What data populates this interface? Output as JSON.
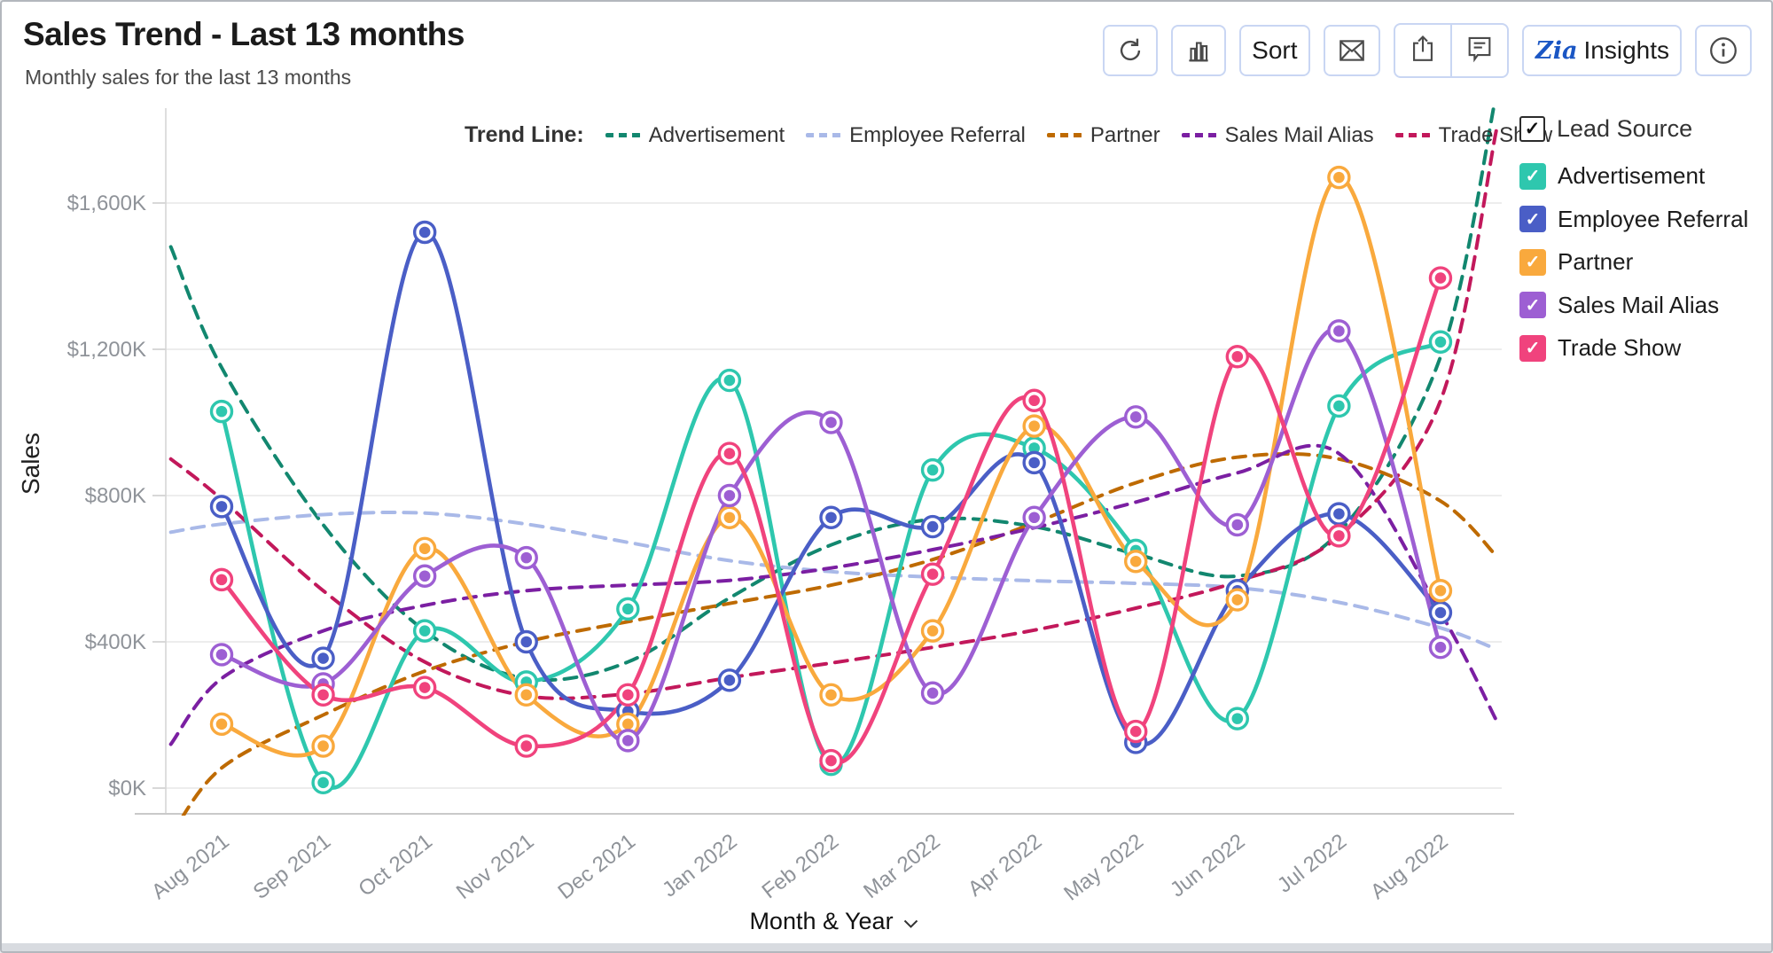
{
  "header": {
    "title": "Sales Trend - Last 13 months",
    "subtitle": "Monthly sales for the last 13 months"
  },
  "toolbar": {
    "sort_label": "Sort",
    "insights_label": "Insights",
    "zia_logo_text": "Zia",
    "icon_names": [
      "refresh-icon",
      "bar-chart-icon",
      "mail-icon",
      "export-icon",
      "comment-icon",
      "info-icon"
    ]
  },
  "trend_legend": {
    "label": "Trend Line:",
    "items": [
      {
        "name": "Advertisement",
        "color": "#12876F"
      },
      {
        "name": "Employee Referral",
        "color": "#A9B9E8"
      },
      {
        "name": "Partner",
        "color": "#BE6A00"
      },
      {
        "name": "Sales Mail Alias",
        "color": "#7B1FA2"
      },
      {
        "name": "Trade Show",
        "color": "#C2185B"
      }
    ]
  },
  "side_legend": {
    "title": "Lead Source",
    "checked_glyph": "✓",
    "items": [
      {
        "label": "Advertisement",
        "color": "#2EC7AE",
        "checked": true
      },
      {
        "label": "Employee Referral",
        "color": "#4A5EC6",
        "checked": true
      },
      {
        "label": "Partner",
        "color": "#F9A93D",
        "checked": true
      },
      {
        "label": "Sales Mail Alias",
        "color": "#9D5FD3",
        "checked": true
      },
      {
        "label": "Trade Show",
        "color": "#F0437D",
        "checked": true
      }
    ]
  },
  "chart_data": {
    "type": "line",
    "title": "Sales Trend - Last 13 months",
    "xlabel": "Month & Year",
    "ylabel": "Sales",
    "ylim": [
      0,
      1800
    ],
    "grid": true,
    "legend_position": "right",
    "y_ticks": [
      {
        "value": 0,
        "label": "$0K"
      },
      {
        "value": 400,
        "label": "$400K"
      },
      {
        "value": 800,
        "label": "$800K"
      },
      {
        "value": 1200,
        "label": "$1,200K"
      },
      {
        "value": 1600,
        "label": "$1,600K"
      }
    ],
    "categories": [
      "Aug 2021",
      "Sep 2021",
      "Oct 2021",
      "Nov 2021",
      "Dec 2021",
      "Jan 2022",
      "Feb 2022",
      "Mar 2022",
      "Apr 2022",
      "May 2022",
      "Jun 2022",
      "Jul 2022",
      "Aug 2022"
    ],
    "series": [
      {
        "name": "Advertisement",
        "color": "#2EC7AE",
        "values": [
          1030,
          15,
          430,
          290,
          490,
          1115,
          65,
          870,
          930,
          650,
          190,
          1045,
          1220
        ]
      },
      {
        "name": "Employee Referral",
        "color": "#4A5EC6",
        "values": [
          770,
          355,
          1520,
          400,
          210,
          295,
          740,
          715,
          890,
          125,
          540,
          750,
          480
        ]
      },
      {
        "name": "Partner",
        "color": "#F9A93D",
        "values": [
          175,
          115,
          655,
          255,
          175,
          740,
          255,
          430,
          990,
          620,
          515,
          1670,
          540
        ]
      },
      {
        "name": "Sales Mail Alias",
        "color": "#9D5FD3",
        "values": [
          365,
          285,
          580,
          630,
          130,
          800,
          1000,
          260,
          740,
          1015,
          720,
          1250,
          385
        ]
      },
      {
        "name": "Trade Show",
        "color": "#F0437D",
        "values": [
          570,
          255,
          275,
          115,
          255,
          915,
          75,
          585,
          1060,
          155,
          1180,
          690,
          1395
        ]
      }
    ],
    "trend_series": [
      {
        "name": "Advertisement",
        "color": "#12876F",
        "points": [
          [
            -0.5,
            1480
          ],
          [
            0,
            1150
          ],
          [
            1,
            720
          ],
          [
            2,
            430
          ],
          [
            3,
            300
          ],
          [
            4,
            345
          ],
          [
            5,
            520
          ],
          [
            6,
            665
          ],
          [
            7,
            735
          ],
          [
            8,
            715
          ],
          [
            9,
            640
          ],
          [
            10,
            580
          ],
          [
            11,
            700
          ],
          [
            12,
            1180
          ],
          [
            12.55,
            1900
          ]
        ]
      },
      {
        "name": "Employee Referral",
        "color": "#A9B9E8",
        "points": [
          [
            -0.5,
            700
          ],
          [
            0,
            722
          ],
          [
            1,
            748
          ],
          [
            2,
            752
          ],
          [
            3,
            722
          ],
          [
            4,
            672
          ],
          [
            5,
            622
          ],
          [
            6,
            592
          ],
          [
            7,
            577
          ],
          [
            8,
            567
          ],
          [
            9,
            560
          ],
          [
            10,
            548
          ],
          [
            11,
            508
          ],
          [
            12,
            438
          ],
          [
            12.55,
            380
          ]
        ]
      },
      {
        "name": "Partner",
        "color": "#BE6A00",
        "points": [
          [
            -0.5,
            -130
          ],
          [
            0,
            55
          ],
          [
            1,
            200
          ],
          [
            2,
            320
          ],
          [
            3,
            400
          ],
          [
            4,
            455
          ],
          [
            5,
            505
          ],
          [
            6,
            555
          ],
          [
            7,
            625
          ],
          [
            8,
            725
          ],
          [
            9,
            835
          ],
          [
            10,
            905
          ],
          [
            11,
            900
          ],
          [
            12,
            785
          ],
          [
            12.55,
            635
          ]
        ]
      },
      {
        "name": "Sales Mail Alias",
        "color": "#7B1FA2",
        "points": [
          [
            -0.5,
            120
          ],
          [
            0,
            300
          ],
          [
            1,
            430
          ],
          [
            2,
            500
          ],
          [
            3,
            540
          ],
          [
            4,
            555
          ],
          [
            5,
            568
          ],
          [
            6,
            602
          ],
          [
            7,
            652
          ],
          [
            8,
            712
          ],
          [
            9,
            782
          ],
          [
            10,
            862
          ],
          [
            11,
            915
          ],
          [
            12,
            480
          ],
          [
            12.55,
            185
          ]
        ]
      },
      {
        "name": "Trade Show",
        "color": "#C2185B",
        "points": [
          [
            -0.5,
            900
          ],
          [
            0,
            790
          ],
          [
            1,
            540
          ],
          [
            2,
            345
          ],
          [
            3,
            252
          ],
          [
            4,
            258
          ],
          [
            5,
            302
          ],
          [
            6,
            342
          ],
          [
            7,
            385
          ],
          [
            8,
            432
          ],
          [
            9,
            492
          ],
          [
            10,
            565
          ],
          [
            11,
            690
          ],
          [
            12,
            1060
          ],
          [
            12.55,
            1800
          ]
        ]
      }
    ]
  }
}
